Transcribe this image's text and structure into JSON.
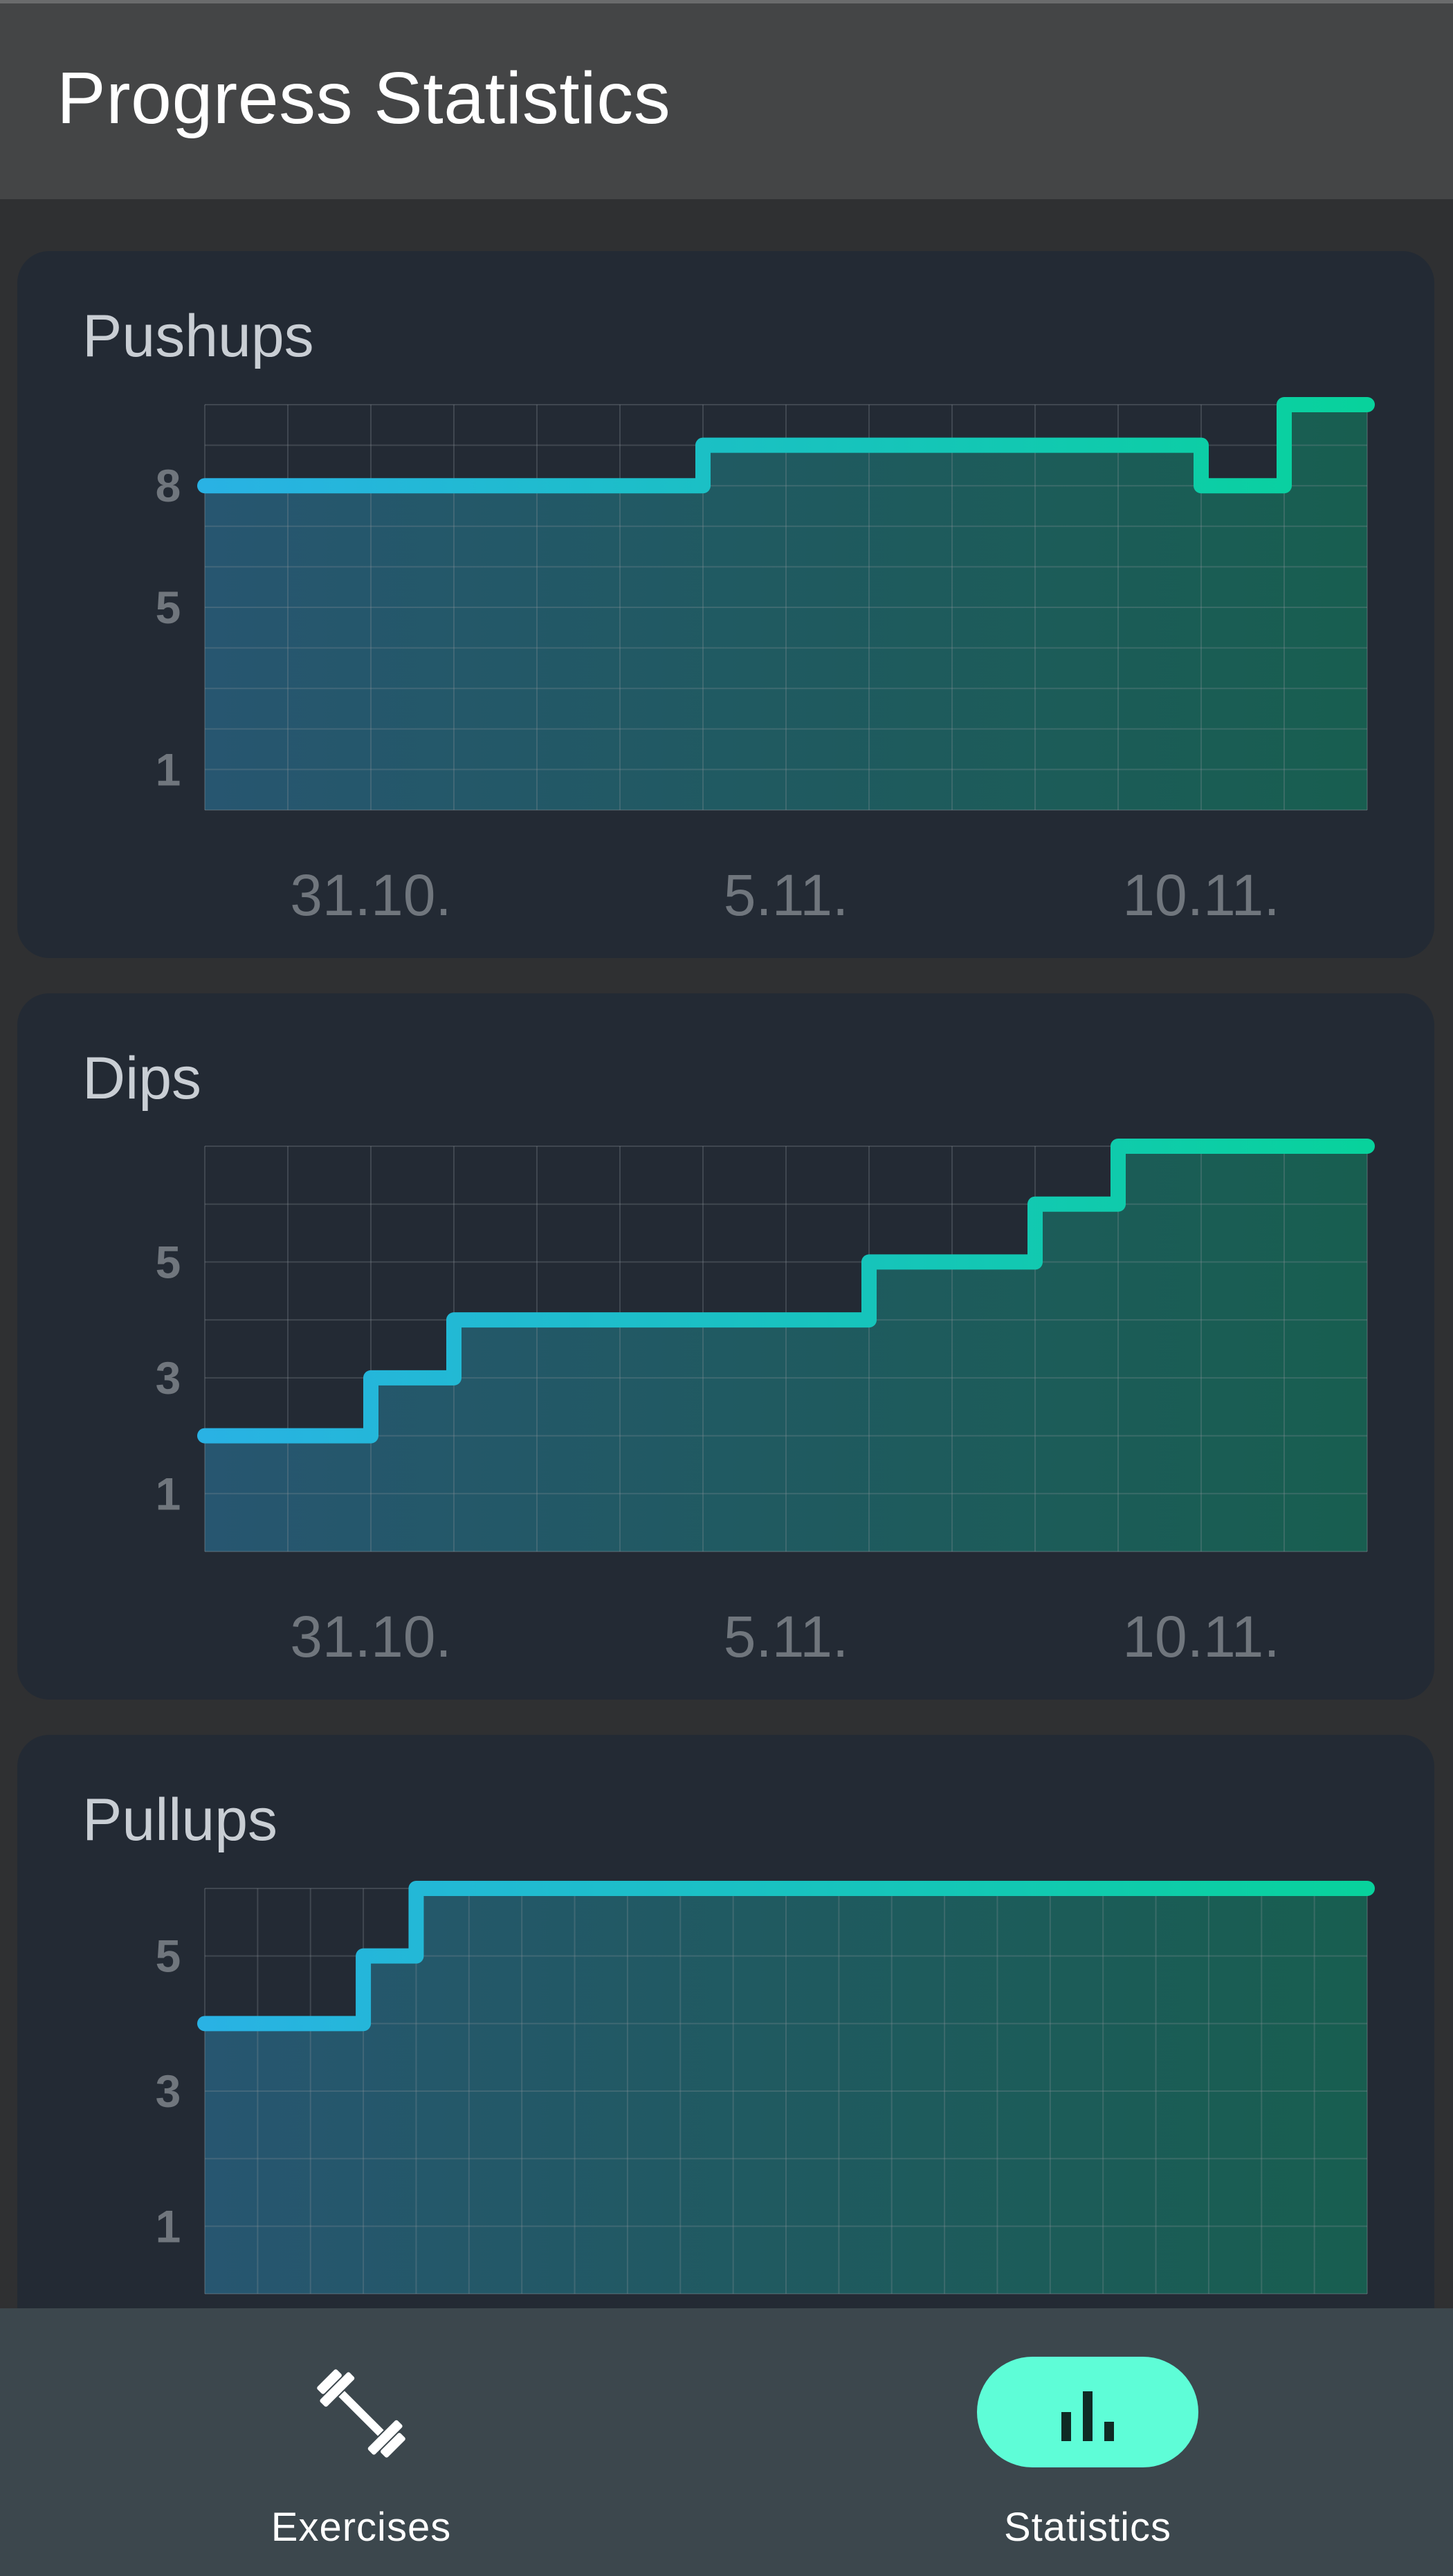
{
  "app": {
    "title": "Progress Statistics"
  },
  "colors": {
    "line_start": "#29b2e4",
    "line_end": "#08d29c",
    "fill_start": "#275670",
    "fill_end": "#185e50",
    "active_nav_bg": "#5efdd7"
  },
  "charts": [
    {
      "title": "Pushups",
      "chart_data": {
        "type": "line",
        "step": true,
        "ylim": [
          0,
          10
        ],
        "y_ticks": [
          1,
          5,
          8
        ],
        "x_ticks": [
          "31.10.",
          "5.11.",
          "10.11."
        ],
        "x": [
          "29.10.",
          "30.10.",
          "31.10.",
          "1.11.",
          "2.11.",
          "3.11.",
          "4.11.",
          "5.11.",
          "6.11.",
          "7.11.",
          "8.11.",
          "9.11.",
          "10.11.",
          "11.11.",
          "12.11."
        ],
        "values": [
          8,
          8,
          8,
          8,
          8,
          8,
          9,
          9,
          9,
          9,
          9,
          9,
          8,
          10,
          10
        ]
      }
    },
    {
      "title": "Dips",
      "chart_data": {
        "type": "line",
        "step": true,
        "ylim": [
          0,
          7
        ],
        "y_ticks": [
          1,
          3,
          5
        ],
        "x_ticks": [
          "31.10.",
          "5.11.",
          "10.11."
        ],
        "x": [
          "29.10.",
          "30.10.",
          "31.10.",
          "1.11.",
          "2.11.",
          "3.11.",
          "4.11.",
          "5.11.",
          "6.11.",
          "7.11.",
          "8.11.",
          "9.11.",
          "10.11.",
          "11.11.",
          "12.11."
        ],
        "values": [
          2,
          2,
          3,
          4,
          4,
          4,
          4,
          4,
          5,
          5,
          6,
          7,
          7,
          7,
          7
        ]
      }
    },
    {
      "title": "Pullups",
      "chart_data": {
        "type": "line",
        "step": true,
        "ylim": [
          0,
          6
        ],
        "y_ticks": [
          1,
          3,
          5
        ],
        "x_ticks": [],
        "values": [
          4,
          4,
          4,
          5,
          6,
          6,
          6,
          6,
          6,
          6,
          6,
          6,
          6,
          6,
          6,
          6,
          6,
          6,
          6,
          6,
          6,
          6,
          6
        ]
      }
    }
  ],
  "nav": {
    "items": [
      {
        "label": "Exercises",
        "icon": "dumbbell-icon",
        "active": false
      },
      {
        "label": "Statistics",
        "icon": "bar-chart-icon",
        "active": true
      }
    ]
  }
}
